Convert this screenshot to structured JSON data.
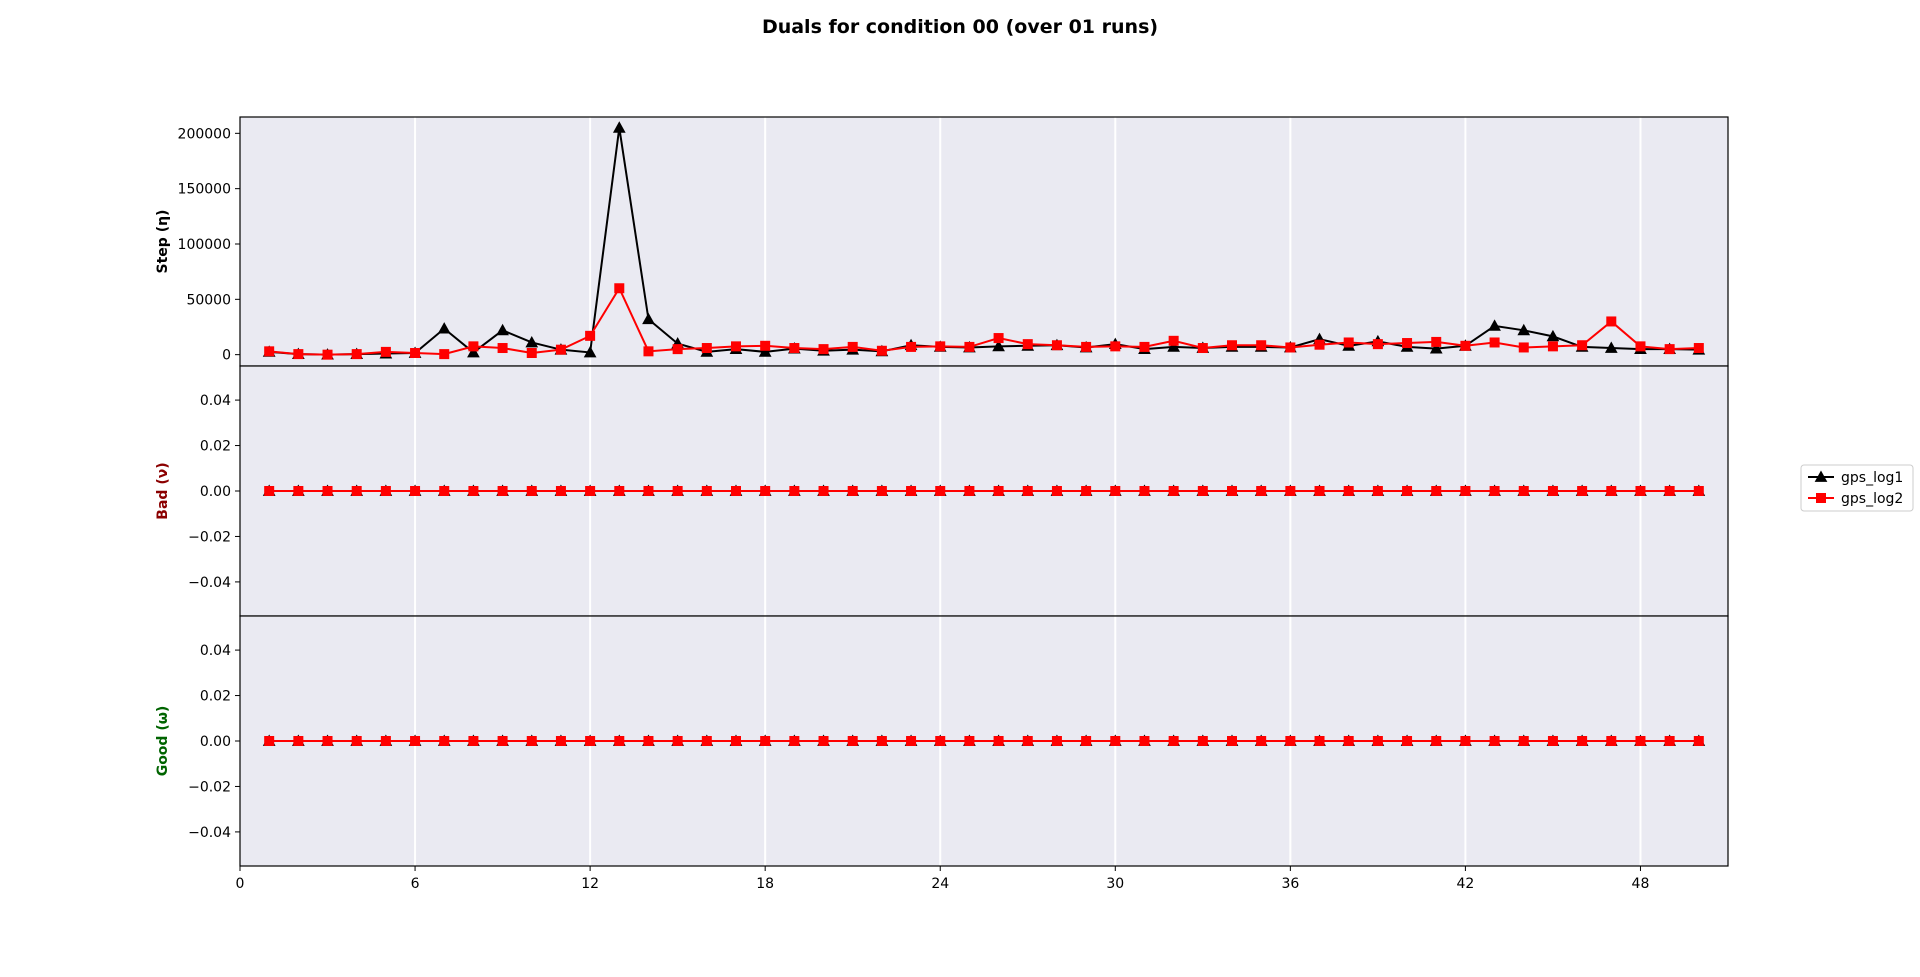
{
  "chart_data": {
    "type": "line",
    "title": "Duals for condition 00 (over 01 runs)",
    "x": [
      1,
      2,
      3,
      4,
      5,
      6,
      7,
      8,
      9,
      10,
      11,
      12,
      13,
      14,
      15,
      16,
      17,
      18,
      19,
      20,
      21,
      22,
      23,
      24,
      25,
      26,
      27,
      28,
      29,
      30,
      31,
      32,
      33,
      34,
      35,
      36,
      37,
      38,
      39,
      40,
      41,
      42,
      43,
      44,
      45,
      46,
      47,
      48,
      49,
      50
    ],
    "xlim": [
      0,
      51
    ],
    "xticks": [
      0,
      6,
      12,
      18,
      24,
      30,
      36,
      42,
      48
    ],
    "xtick_labels": [
      "0",
      "6",
      "12",
      "18",
      "24",
      "30",
      "36",
      "42",
      "48"
    ],
    "grid": "vertical",
    "legend": {
      "placement": "right",
      "entries": [
        "gps_log1",
        "gps_log2"
      ]
    },
    "series_colors": [
      "#000000",
      "#ff0000"
    ],
    "series_markers": [
      "triangle",
      "square"
    ],
    "panels": [
      {
        "ylabel": "Step (η)",
        "ylabel_color": "#000000",
        "ylim": [
          -10250,
          214750
        ],
        "yticks": [
          0,
          50000,
          100000,
          150000,
          200000
        ],
        "ytick_labels": [
          "0",
          "50000",
          "100000",
          "150000",
          "200000"
        ],
        "series": [
          {
            "name": "gps_log1",
            "values": [
              2500,
              500,
              0,
              500,
              1000,
              1500,
              23500,
              2000,
              22000,
              11000,
              4500,
              2000,
              205000,
              32000,
              10000,
              2500,
              5000,
              2500,
              5500,
              3500,
              4500,
              3000,
              8500,
              7000,
              6500,
              7500,
              8000,
              8500,
              6500,
              9500,
              5000,
              7000,
              6000,
              7000,
              7000,
              6500,
              14000,
              8000,
              12000,
              7000,
              5500,
              8000,
              26000,
              22000,
              16500,
              7000,
              6000,
              5000,
              5000,
              4500
            ]
          },
          {
            "name": "gps_log2",
            "values": [
              3000,
              500,
              0,
              500,
              2500,
              1500,
              500,
              7500,
              6000,
              1500,
              4500,
              17000,
              60000,
              3000,
              5000,
              6000,
              7500,
              8000,
              6000,
              5000,
              7000,
              3500,
              7000,
              7500,
              7000,
              15000,
              9500,
              8500,
              7000,
              7500,
              7000,
              12500,
              6000,
              8500,
              8500,
              6500,
              9000,
              11000,
              9500,
              10500,
              11500,
              8000,
              11000,
              6500,
              7500,
              8500,
              30000,
              7500,
              5000,
              6000
            ]
          }
        ]
      },
      {
        "ylabel": "Bad (ν)",
        "ylabel_color": "#8b0000",
        "ylim": [
          -0.055,
          0.055
        ],
        "yticks": [
          -0.04,
          -0.02,
          0.0,
          0.02,
          0.04
        ],
        "ytick_labels": [
          "−0.04",
          "−0.02",
          "0.00",
          "0.02",
          "0.04"
        ],
        "series": [
          {
            "name": "gps_log1",
            "values": [
              0,
              0,
              0,
              0,
              0,
              0,
              0,
              0,
              0,
              0,
              0,
              0,
              0,
              0,
              0,
              0,
              0,
              0,
              0,
              0,
              0,
              0,
              0,
              0,
              0,
              0,
              0,
              0,
              0,
              0,
              0,
              0,
              0,
              0,
              0,
              0,
              0,
              0,
              0,
              0,
              0,
              0,
              0,
              0,
              0,
              0,
              0,
              0,
              0,
              0
            ]
          },
          {
            "name": "gps_log2",
            "values": [
              0,
              0,
              0,
              0,
              0,
              0,
              0,
              0,
              0,
              0,
              0,
              0,
              0,
              0,
              0,
              0,
              0,
              0,
              0,
              0,
              0,
              0,
              0,
              0,
              0,
              0,
              0,
              0,
              0,
              0,
              0,
              0,
              0,
              0,
              0,
              0,
              0,
              0,
              0,
              0,
              0,
              0,
              0,
              0,
              0,
              0,
              0,
              0,
              0,
              0
            ]
          }
        ]
      },
      {
        "ylabel": "Good (ω)",
        "ylabel_color": "#006400",
        "ylim": [
          -0.055,
          0.055
        ],
        "yticks": [
          -0.04,
          -0.02,
          0.0,
          0.02,
          0.04
        ],
        "ytick_labels": [
          "−0.04",
          "−0.02",
          "0.00",
          "0.02",
          "0.04"
        ],
        "series": [
          {
            "name": "gps_log1",
            "values": [
              0,
              0,
              0,
              0,
              0,
              0,
              0,
              0,
              0,
              0,
              0,
              0,
              0,
              0,
              0,
              0,
              0,
              0,
              0,
              0,
              0,
              0,
              0,
              0,
              0,
              0,
              0,
              0,
              0,
              0,
              0,
              0,
              0,
              0,
              0,
              0,
              0,
              0,
              0,
              0,
              0,
              0,
              0,
              0,
              0,
              0,
              0,
              0,
              0,
              0
            ]
          },
          {
            "name": "gps_log2",
            "values": [
              0,
              0,
              0,
              0,
              0,
              0,
              0,
              0,
              0,
              0,
              0,
              0,
              0,
              0,
              0,
              0,
              0,
              0,
              0,
              0,
              0,
              0,
              0,
              0,
              0,
              0,
              0,
              0,
              0,
              0,
              0,
              0,
              0,
              0,
              0,
              0,
              0,
              0,
              0,
              0,
              0,
              0,
              0,
              0,
              0,
              0,
              0,
              0,
              0,
              0
            ]
          }
        ]
      }
    ]
  }
}
